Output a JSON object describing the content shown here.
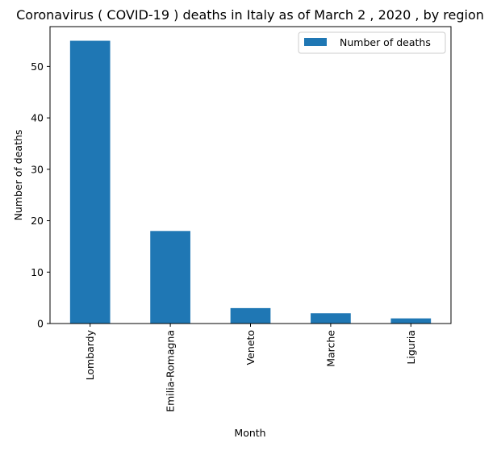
{
  "chart_data": {
    "type": "bar",
    "title": "Coronavirus ( COVID-19 ) deaths in Italy as of March 2 , 2020 , by region",
    "xlabel": "Month",
    "ylabel": "Number of deaths",
    "categories": [
      "Lombardy",
      "Emilia-Romagna",
      "Veneto",
      "Marche",
      "Liguria"
    ],
    "series": [
      {
        "name": "Number of deaths",
        "values": [
          55,
          18,
          3,
          2,
          1
        ],
        "color": "#1f77b4"
      }
    ],
    "yticks": [
      0,
      10,
      20,
      30,
      40,
      50
    ],
    "ylim": [
      0,
      57.75
    ],
    "grid": false,
    "legend_position": "top-right"
  }
}
